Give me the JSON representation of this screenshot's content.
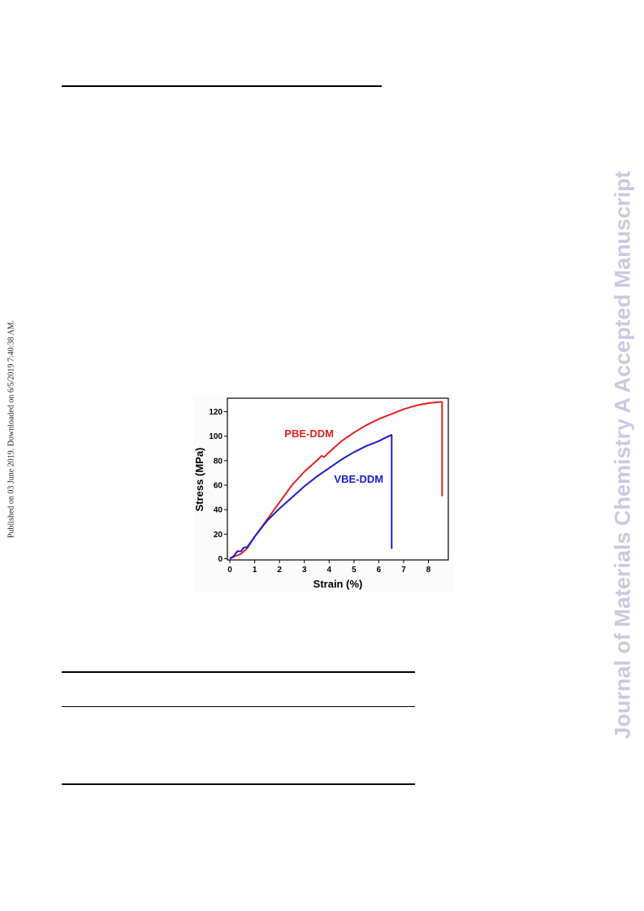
{
  "side_note": "Published on 03 June 2019. Downloaded on 6/5/2019 7:40:38 AM.",
  "watermark": "Journal of Materials Chemistry A Accepted Manuscript",
  "chart_data": {
    "type": "line",
    "xlabel": "Strain (%)",
    "ylabel": "Stress (MPa)",
    "xlim": [
      -0.1,
      8.8
    ],
    "ylim": [
      -1,
      131
    ],
    "xticks": [
      0,
      1,
      2,
      3,
      4,
      5,
      6,
      7,
      8
    ],
    "yticks": [
      0,
      20,
      40,
      60,
      80,
      100,
      120
    ],
    "grid": false,
    "series": [
      {
        "name": "PBE-DDM",
        "color": "#e02020",
        "label_at": [
          2.2,
          99
        ],
        "points": [
          [
            0,
            0
          ],
          [
            0.2,
            2
          ],
          [
            0.45,
            4
          ],
          [
            0.7,
            8.5
          ],
          [
            1.0,
            18
          ],
          [
            1.5,
            32
          ],
          [
            2.0,
            46
          ],
          [
            2.5,
            60
          ],
          [
            3.0,
            71
          ],
          [
            3.5,
            80
          ],
          [
            3.7,
            84
          ],
          [
            3.8,
            83
          ],
          [
            3.9,
            85
          ],
          [
            4.5,
            96
          ],
          [
            5.0,
            103
          ],
          [
            5.5,
            109
          ],
          [
            6.0,
            114
          ],
          [
            6.5,
            118
          ],
          [
            7.0,
            122
          ],
          [
            7.5,
            125
          ],
          [
            8.0,
            127
          ],
          [
            8.5,
            128
          ],
          [
            8.55,
            128
          ],
          [
            8.55,
            51
          ]
        ]
      },
      {
        "name": "VBE-DDM",
        "color": "#1c1ccc",
        "label_at": [
          4.2,
          62
        ],
        "points": [
          [
            0,
            0
          ],
          [
            0.15,
            2
          ],
          [
            0.3,
            6
          ],
          [
            0.45,
            6
          ],
          [
            0.55,
            9
          ],
          [
            0.7,
            9.5
          ],
          [
            1.0,
            18
          ],
          [
            1.5,
            31
          ],
          [
            2.0,
            41
          ],
          [
            2.5,
            50
          ],
          [
            3.0,
            59
          ],
          [
            3.5,
            67
          ],
          [
            4.0,
            74
          ],
          [
            4.5,
            81
          ],
          [
            5.0,
            87
          ],
          [
            5.5,
            92
          ],
          [
            6.0,
            96
          ],
          [
            6.3,
            99
          ],
          [
            6.5,
            101
          ],
          [
            6.52,
            101
          ],
          [
            6.52,
            8
          ]
        ]
      }
    ]
  }
}
